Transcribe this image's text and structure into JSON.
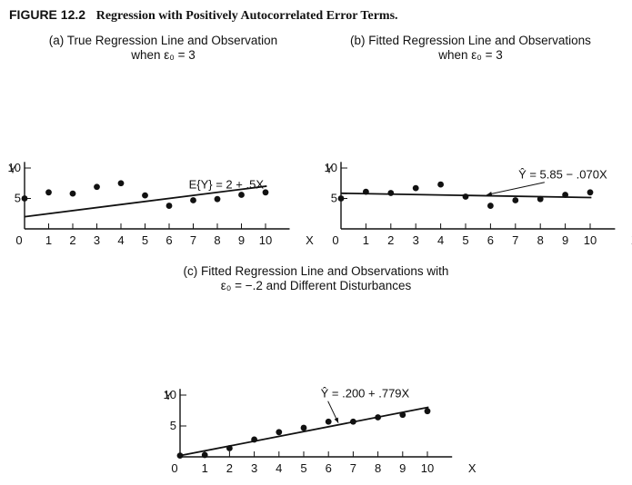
{
  "figure": {
    "label": "FIGURE 12.2",
    "title": "Regression with Positively Autocorrelated Error Terms."
  },
  "chart_data": [
    {
      "type": "scatter",
      "panel": "a",
      "title_lines": [
        "(a) True Regression Line and Observation",
        "when ε₀ = 3"
      ],
      "xlabel": "X",
      "ylabel": "Y",
      "xlim": [
        0,
        11
      ],
      "ylim": [
        0,
        11
      ],
      "xticks": [
        0,
        1,
        2,
        3,
        4,
        5,
        6,
        7,
        8,
        9,
        10
      ],
      "yticks": [
        5,
        10
      ],
      "points": [
        {
          "x": 0,
          "y": 5.0
        },
        {
          "x": 1,
          "y": 6.0
        },
        {
          "x": 2,
          "y": 5.8
        },
        {
          "x": 3,
          "y": 6.9
        },
        {
          "x": 4,
          "y": 7.5
        },
        {
          "x": 5,
          "y": 5.5
        },
        {
          "x": 6,
          "y": 3.8
        },
        {
          "x": 7,
          "y": 4.7
        },
        {
          "x": 8,
          "y": 4.9
        },
        {
          "x": 9,
          "y": 5.6
        },
        {
          "x": 10,
          "y": 6.0
        }
      ],
      "line": {
        "intercept": 2,
        "slope": 0.5,
        "label": "E{Y} = 2 + .5X"
      }
    },
    {
      "type": "scatter",
      "panel": "b",
      "title_lines": [
        "(b) Fitted Regression Line and Observations",
        "when ε₀ = 3"
      ],
      "xlabel": "X",
      "ylabel": "Y",
      "xlim": [
        0,
        11
      ],
      "ylim": [
        0,
        11
      ],
      "xticks": [
        0,
        1,
        2,
        3,
        4,
        5,
        6,
        7,
        8,
        9,
        10
      ],
      "yticks": [
        5,
        10
      ],
      "points": [
        {
          "x": 0,
          "y": 5.0
        },
        {
          "x": 1,
          "y": 6.1
        },
        {
          "x": 2,
          "y": 5.9
        },
        {
          "x": 3,
          "y": 6.7
        },
        {
          "x": 4,
          "y": 7.3
        },
        {
          "x": 5,
          "y": 5.3
        },
        {
          "x": 6,
          "y": 3.8
        },
        {
          "x": 7,
          "y": 4.7
        },
        {
          "x": 8,
          "y": 4.9
        },
        {
          "x": 9,
          "y": 5.6
        },
        {
          "x": 10,
          "y": 6.0
        }
      ],
      "line": {
        "intercept": 5.85,
        "slope": -0.07,
        "label": "Ŷ = 5.85 − .070X"
      }
    },
    {
      "type": "scatter",
      "panel": "c",
      "title_lines": [
        "(c) Fitted Regression Line and Observations with",
        "ε₀ = −.2 and Different Disturbances"
      ],
      "xlabel": "X",
      "ylabel": "Y",
      "xlim": [
        0,
        11
      ],
      "ylim": [
        0,
        11
      ],
      "xticks": [
        0,
        1,
        2,
        3,
        4,
        5,
        6,
        7,
        8,
        9,
        10
      ],
      "yticks": [
        5,
        10
      ],
      "points": [
        {
          "x": 0,
          "y": 0.2
        },
        {
          "x": 1,
          "y": 0.3
        },
        {
          "x": 2,
          "y": 1.4
        },
        {
          "x": 3,
          "y": 2.8
        },
        {
          "x": 4,
          "y": 4.0
        },
        {
          "x": 5,
          "y": 4.7
        },
        {
          "x": 6,
          "y": 5.7
        },
        {
          "x": 7,
          "y": 5.7
        },
        {
          "x": 8,
          "y": 6.4
        },
        {
          "x": 9,
          "y": 6.8
        },
        {
          "x": 10,
          "y": 7.4
        }
      ],
      "line": {
        "intercept": 0.2,
        "slope": 0.779,
        "label": "Ŷ = .200 + .779X"
      }
    }
  ]
}
